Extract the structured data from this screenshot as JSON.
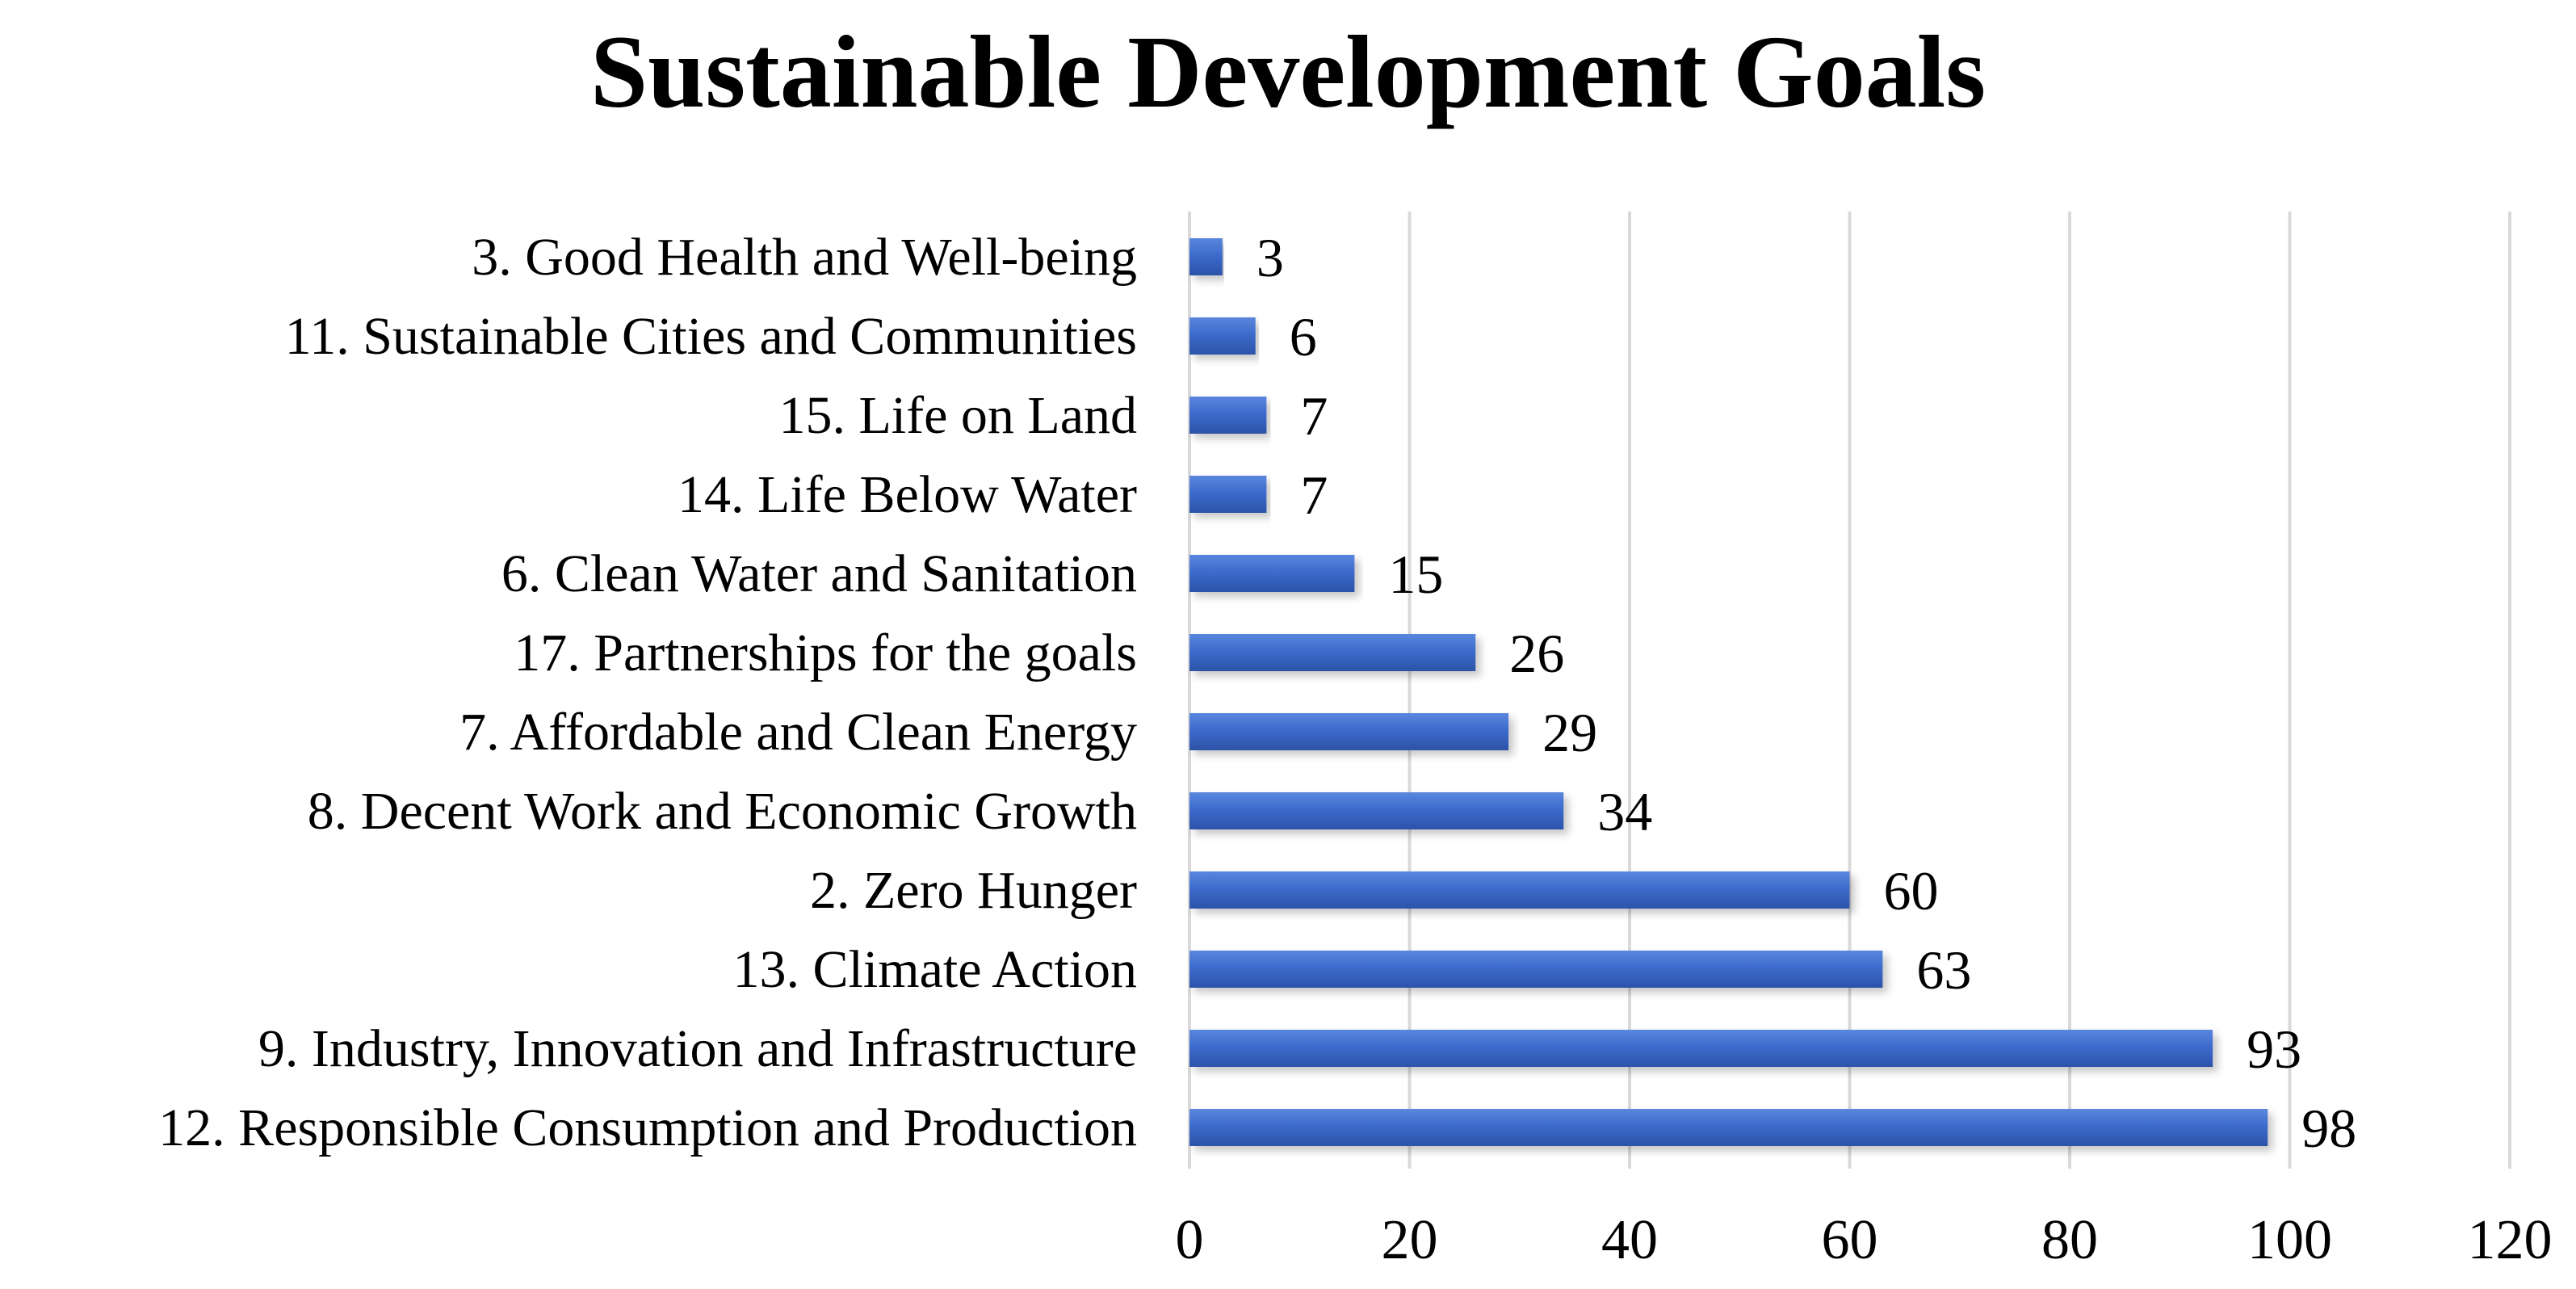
{
  "chart_data": {
    "type": "bar",
    "orientation": "horizontal",
    "title": "Sustainable Development Goals",
    "xlabel": "",
    "ylabel": "",
    "xlim": [
      0,
      120
    ],
    "xticks": [
      0,
      20,
      40,
      60,
      80,
      100,
      120
    ],
    "grid": true,
    "bar_color": "#3d6bcc",
    "bar_color_light": "#5a87dc",
    "bar_color_dark": "#2c53a8",
    "grid_color": "#d9d9d9",
    "categories": [
      "3. Good Health and Well-being",
      "11. Sustainable Cities and Communities",
      "15. Life on Land",
      "14. Life Below Water",
      "6. Clean Water and Sanitation",
      "17. Partnerships for the goals",
      "7. Affordable and Clean Energy",
      "8. Decent Work and Economic Growth",
      "2. Zero Hunger",
      "13. Climate Action",
      "9. Industry, Innovation and Infrastructure",
      "12. Responsible Consumption and Production"
    ],
    "values": [
      3,
      6,
      7,
      7,
      15,
      26,
      29,
      34,
      60,
      63,
      93,
      98
    ]
  }
}
